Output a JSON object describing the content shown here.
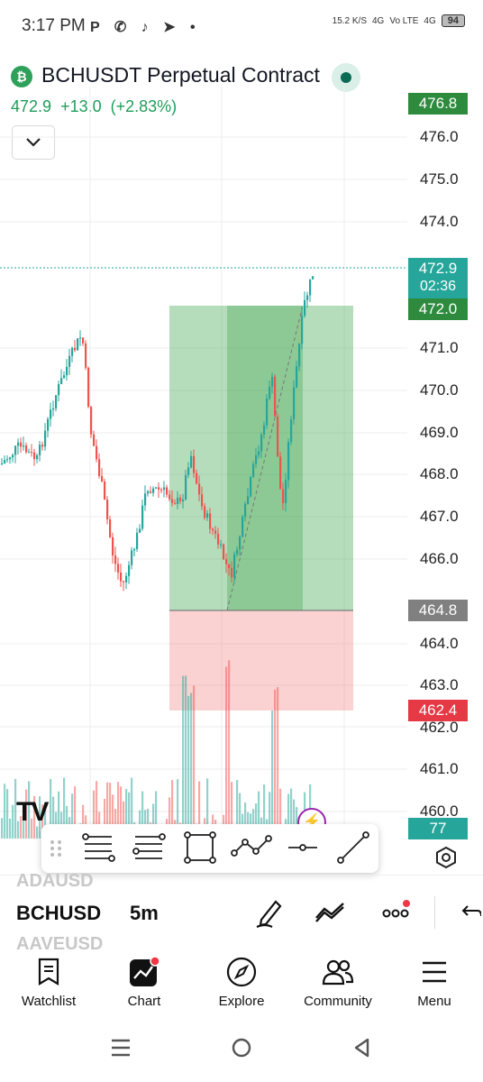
{
  "status_bar": {
    "time": "3:17 PM",
    "net_speed": "15.2 K/S",
    "signal_1": "4G",
    "volte": "Vo LTE",
    "signal_2": "4G",
    "battery": "94"
  },
  "header": {
    "coin_symbol": "₿",
    "title": "BCHUSDT Perpetual Contract",
    "last_price": "472.9",
    "change": "+13.0",
    "change_pct": "(+2.83%)",
    "collapse_icon": "chevron-down-icon"
  },
  "price_scale": {
    "labels": [
      "476.0",
      "475.0",
      "474.0",
      "471.0",
      "470.0",
      "469.0",
      "468.0",
      "467.0",
      "466.0",
      "464.0",
      "463.0",
      "462.0",
      "461.0",
      "460.0"
    ],
    "badges": {
      "target": "476.8",
      "last": "472.9",
      "countdown": "02:36",
      "entry_top": "472.0",
      "stop_entry": "464.8",
      "stop_loss": "462.4",
      "volume": "77"
    },
    "colors": {
      "up": "#26a69a",
      "down": "#ef5350",
      "profit_zone": "#2e9d3c",
      "loss_zone": "#f06a6a",
      "badge_green": "#2e8b3e",
      "badge_gray": "#808080",
      "badge_red": "#e53945",
      "badge_teal": "#26a69a"
    }
  },
  "drawing_toolbar": {
    "tools": [
      "grip-icon",
      "fib-retracement-icon",
      "fib-extension-icon",
      "rectangle-icon",
      "path-icon",
      "horizontal-ray-icon",
      "trend-line-icon"
    ]
  },
  "symbol_bar": {
    "prev_symbol": "ADAUSD",
    "current_symbol": "BCHUSD",
    "next_symbol": "AAVEUSD",
    "interval": "5m"
  },
  "bottom_nav": [
    {
      "label": "Watchlist",
      "icon": "watchlist-icon"
    },
    {
      "label": "Chart",
      "icon": "chart-icon"
    },
    {
      "label": "Explore",
      "icon": "compass-icon"
    },
    {
      "label": "Community",
      "icon": "community-icon"
    },
    {
      "label": "Menu",
      "icon": "menu-icon"
    }
  ]
}
